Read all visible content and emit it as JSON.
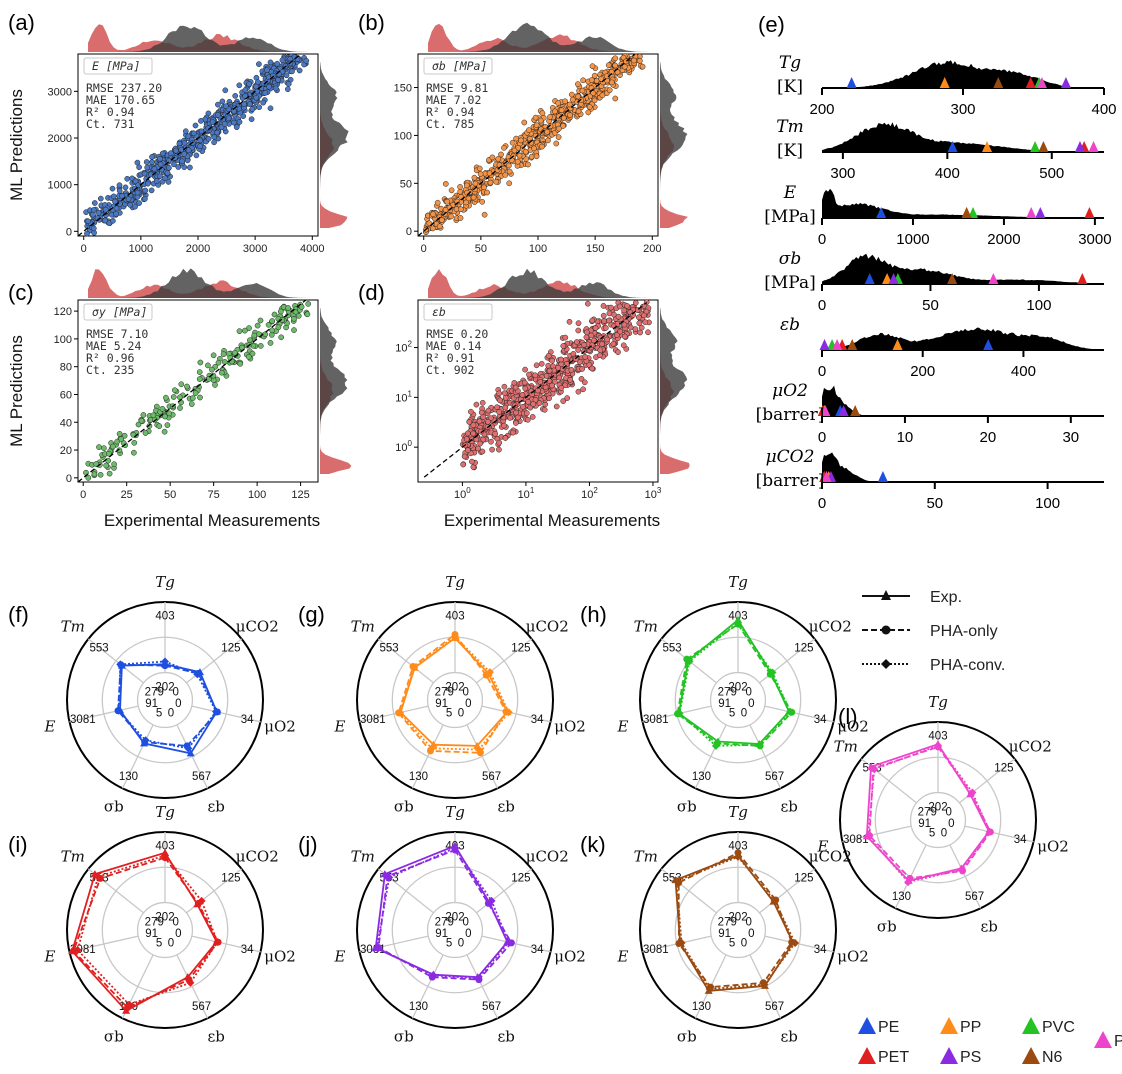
{
  "figure": {
    "panels": [
      "(a)",
      "(b)",
      "(c)",
      "(d)",
      "(e)",
      "(f)",
      "(g)",
      "(h)",
      "(i)",
      "(j)",
      "(k)",
      "(l)"
    ]
  },
  "colors": {
    "PE": "#1f4fe0",
    "PP": "#ff8c1a",
    "PVC": "#22c322",
    "PET": "#e02020",
    "PS": "#8a2be2",
    "N6": "#9b4a10",
    "PEI": "#ee44cc",
    "hist_black": "#000000",
    "hist_gray": "#3c3c3c",
    "hist_red": "#cc3b3b"
  },
  "chart_data": [
    {
      "type": "scatter",
      "panel": "(a)",
      "label": "E [MPa]",
      "stats": [
        "RMSE 237.20",
        "MAE 170.65",
        "R² 0.94",
        "Ct.  731"
      ],
      "color": "#4a78c2",
      "xlim": [
        -100,
        4100
      ],
      "ylim": [
        -100,
        3800
      ],
      "xticks": [
        0,
        1000,
        2000,
        3000,
        4000
      ],
      "yticks": [
        0,
        1000,
        2000,
        3000
      ],
      "ylabel": "ML Predictions",
      "count": 731,
      "scale": "linear"
    },
    {
      "type": "scatter",
      "panel": "(b)",
      "label": "σb [MPa]",
      "stats": [
        "RMSE 9.81",
        "MAE 7.02",
        "R² 0.94",
        "Ct.  785"
      ],
      "color": "#f39448",
      "xlim": [
        -5,
        205
      ],
      "ylim": [
        -5,
        185
      ],
      "xticks": [
        0,
        50,
        100,
        150,
        200
      ],
      "yticks": [
        0,
        50,
        100,
        150
      ],
      "count": 785,
      "scale": "linear"
    },
    {
      "type": "scatter",
      "panel": "(c)",
      "label": "σy [MPa]",
      "stats": [
        "RMSE 7.10",
        "MAE 5.24",
        "R² 0.96",
        "Ct.  235"
      ],
      "color": "#6dbb6a",
      "xlim": [
        -3,
        135
      ],
      "ylim": [
        -3,
        128
      ],
      "xticks": [
        0,
        25,
        50,
        75,
        100,
        125
      ],
      "yticks": [
        0,
        20,
        40,
        60,
        80,
        100,
        120
      ],
      "ylabel": "ML Predictions",
      "xlabel": "Experimental Measurements",
      "count": 235,
      "scale": "linear"
    },
    {
      "type": "scatter",
      "panel": "(d)",
      "label": "εb",
      "stats": [
        "RMSE 0.20",
        "MAE 0.14",
        "R² 0.91",
        "Ct.  902"
      ],
      "color": "#e07070",
      "xlim": [
        0.2,
        1200
      ],
      "ylim": [
        0.2,
        900
      ],
      "xticks": [
        1,
        10,
        100,
        1000
      ],
      "yticks": [
        1,
        10,
        100
      ],
      "xlabel": "Experimental Measurements",
      "count": 902,
      "scale": "log"
    },
    {
      "type": "area",
      "panel": "(e)",
      "rows": [
        {
          "label": "Tg",
          "unit": "[K]",
          "min": 200,
          "max": 400,
          "ticks": [
            200,
            300,
            400
          ],
          "markers": {
            "PE": 221,
            "PP": 287,
            "PVC": 354,
            "PET": 348,
            "PS": 373,
            "N6": 325,
            "PEI": 356
          }
        },
        {
          "label": "Tm",
          "unit": "[K]",
          "min": 280,
          "max": 550,
          "ticks": [
            300,
            400,
            500
          ],
          "markers": {
            "PE": 405,
            "PP": 438,
            "PVC": 484,
            "PET": 531,
            "PS": 527,
            "N6": 492,
            "PEI": 540
          }
        },
        {
          "label": "E",
          "unit": "[MPa]",
          "min": 0,
          "max": 3100,
          "ticks": [
            0,
            1000,
            2000,
            3000
          ],
          "markers": {
            "PE": 650,
            "PP": 1590,
            "PVC": 1660,
            "PET": 2940,
            "PS": 2400,
            "N6": 1590,
            "PEI": 2300
          }
        },
        {
          "label": "σb",
          "unit": "[MPa]",
          "min": 0,
          "max": 130,
          "ticks": [
            0,
            50,
            100
          ],
          "markers": {
            "PE": 22,
            "PP": 30,
            "PVC": 35,
            "PET": 120,
            "PS": 33,
            "N6": 60,
            "PEI": 79
          }
        },
        {
          "label": "εb",
          "unit": "",
          "min": 0,
          "max": 560,
          "ticks": [
            0,
            200,
            400
          ],
          "markers": {
            "PE": 330,
            "PP": 150,
            "PVC": 20,
            "PET": 40,
            "PS": 5,
            "N6": 60,
            "PEI": 30
          }
        },
        {
          "label": "μO2",
          "unit": "[barrer]",
          "min": 0,
          "max": 34,
          "ticks": [
            0,
            10,
            20,
            30
          ],
          "markers": {
            "PE": 2.2,
            "PP": 0.3,
            "PVC": 0.1,
            "PET": 0.1,
            "PS": 2.6,
            "N6": 4,
            "PEI": 0.4
          }
        },
        {
          "label": "μCO2",
          "unit": "[barrer]",
          "min": 0,
          "max": 125,
          "ticks": [
            0,
            50,
            100
          ],
          "markers": {
            "PE": 27,
            "PP": 3,
            "PVC": 1,
            "PET": 1,
            "PS": 4,
            "N6": 2,
            "PEI": 2
          }
        }
      ]
    },
    {
      "type": "radar",
      "axes": [
        "Tg",
        "μCO2",
        "μO2",
        "εb",
        "σb",
        "E",
        "Tm"
      ],
      "inner_ticks": [
        "202",
        "0",
        "0",
        "0",
        "5",
        "91",
        "279"
      ],
      "outer_ticks": [
        "403",
        "125",
        "34",
        "567",
        "130",
        "3081",
        "553"
      ],
      "legend": [
        "Exp.",
        "PHA-only",
        "PHA-conv."
      ],
      "panels": [
        {
          "panel": "(f)",
          "name": "PE",
          "exp": [
            0.12,
            0.25,
            0.37,
            0.46,
            0.3,
            0.27,
            0.4
          ],
          "pha_only": [
            0.1,
            0.22,
            0.38,
            0.34,
            0.28,
            0.3,
            0.42
          ],
          "pha_conv": [
            0.16,
            0.2,
            0.36,
            0.38,
            0.25,
            0.29,
            0.43
          ]
        },
        {
          "panel": "(g)",
          "name": "PP",
          "exp": [
            0.5,
            0.22,
            0.38,
            0.34,
            0.32,
            0.41,
            0.35
          ],
          "pha_only": [
            0.55,
            0.18,
            0.36,
            0.45,
            0.42,
            0.44,
            0.38
          ],
          "pha_conv": [
            0.52,
            0.25,
            0.4,
            0.4,
            0.38,
            0.42,
            0.36
          ]
        },
        {
          "panel": "(h)",
          "name": "PVC",
          "exp": [
            0.76,
            0.22,
            0.36,
            0.31,
            0.27,
            0.48,
            0.52
          ],
          "pha_only": [
            0.7,
            0.2,
            0.4,
            0.34,
            0.3,
            0.5,
            0.55
          ],
          "pha_conv": [
            0.72,
            0.24,
            0.38,
            0.32,
            0.34,
            0.47,
            0.5
          ]
        },
        {
          "panel": "(i)",
          "name": "PET",
          "exp": [
            0.72,
            0.2,
            0.37,
            0.36,
            0.9,
            0.98,
            0.9
          ],
          "pha_only": [
            0.65,
            0.22,
            0.39,
            0.4,
            0.85,
            0.96,
            0.8
          ],
          "pha_conv": [
            0.68,
            0.28,
            0.38,
            0.45,
            0.8,
            0.9,
            0.84
          ]
        },
        {
          "panel": "(j)",
          "name": "PS",
          "exp": [
            0.82,
            0.24,
            0.38,
            0.36,
            0.32,
            0.78,
            0.9
          ],
          "pha_only": [
            0.76,
            0.22,
            0.44,
            0.4,
            0.36,
            0.74,
            0.85
          ],
          "pha_conv": [
            0.79,
            0.28,
            0.4,
            0.38,
            0.33,
            0.76,
            0.82
          ]
        },
        {
          "panel": "(k)",
          "name": "N6",
          "exp": [
            0.68,
            0.26,
            0.42,
            0.5,
            0.58,
            0.46,
            0.76
          ],
          "pha_only": [
            0.72,
            0.3,
            0.4,
            0.45,
            0.52,
            0.48,
            0.7
          ],
          "pha_conv": [
            0.66,
            0.28,
            0.45,
            0.48,
            0.55,
            0.44,
            0.74
          ]
        },
        {
          "panel": "(l)",
          "name": "PEI",
          "exp": [
            0.7,
            0.2,
            0.36,
            0.38,
            0.58,
            0.66,
            0.84
          ],
          "pha_only": [
            0.66,
            0.22,
            0.38,
            0.42,
            0.54,
            0.62,
            0.8
          ],
          "pha_conv": [
            0.68,
            0.24,
            0.37,
            0.4,
            0.6,
            0.64,
            0.78
          ]
        }
      ]
    }
  ],
  "legend_polymers": [
    {
      "name": "PE",
      "color": "#1f4fe0"
    },
    {
      "name": "PP",
      "color": "#ff8c1a"
    },
    {
      "name": "PVC",
      "color": "#22c322"
    },
    {
      "name": "PEI",
      "color": "#ee44cc"
    },
    {
      "name": "PET",
      "color": "#e02020"
    },
    {
      "name": "PS",
      "color": "#8a2be2"
    },
    {
      "name": "N6",
      "color": "#9b4a10"
    }
  ]
}
